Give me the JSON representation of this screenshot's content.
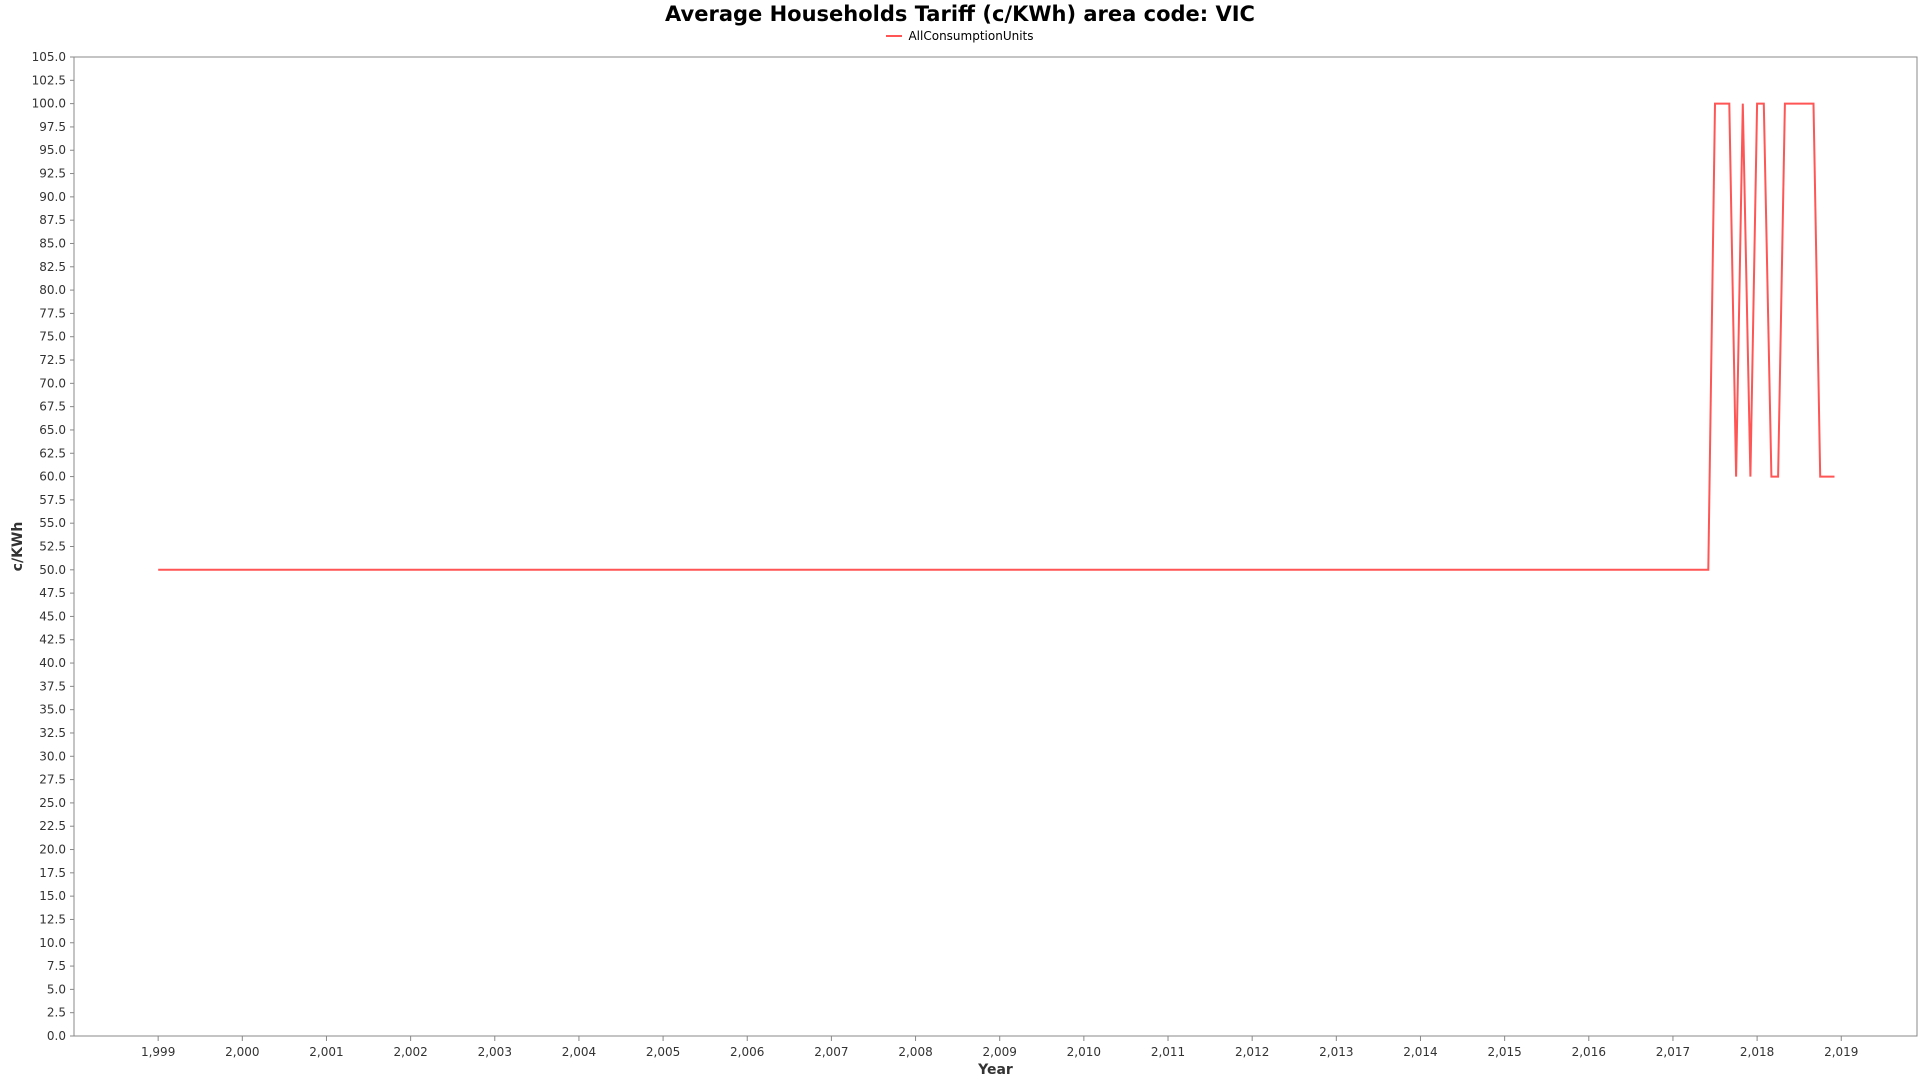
{
  "colors": {
    "series": "#ff5555",
    "axis": "#888888",
    "tick_text": "#333333",
    "background": "#ffffff"
  },
  "chart_data": {
    "type": "line",
    "title": "Average Households Tariff (c/KWh) area code: VIC",
    "xlabel": "Year",
    "ylabel": "c/KWh",
    "xlim": [
      1998.0,
      2019.9
    ],
    "ylim": [
      0,
      105
    ],
    "grid": false,
    "legend_position": "top-center",
    "x_ticks": [
      1999,
      2000,
      2001,
      2002,
      2003,
      2004,
      2005,
      2006,
      2007,
      2008,
      2009,
      2010,
      2011,
      2012,
      2013,
      2014,
      2015,
      2016,
      2017,
      2018,
      2019
    ],
    "x_tick_labels": [
      "1,999",
      "2,000",
      "2,001",
      "2,002",
      "2,003",
      "2,004",
      "2,005",
      "2,006",
      "2,007",
      "2,008",
      "2,009",
      "2,010",
      "2,011",
      "2,012",
      "2,013",
      "2,014",
      "2,015",
      "2,016",
      "2,017",
      "2,018",
      "2,019"
    ],
    "y_ticks": [
      0,
      2.5,
      5,
      7.5,
      10,
      12.5,
      15,
      17.5,
      20,
      22.5,
      25,
      27.5,
      30,
      32.5,
      35,
      37.5,
      40,
      42.5,
      45,
      47.5,
      50,
      52.5,
      55,
      57.5,
      60,
      62.5,
      65,
      67.5,
      70,
      72.5,
      75,
      77.5,
      80,
      82.5,
      85,
      87.5,
      90,
      92.5,
      95,
      97.5,
      100,
      102.5,
      105
    ],
    "y_tick_labels": [
      "0.0",
      "2.5",
      "5.0",
      "7.5",
      "10.0",
      "12.5",
      "15.0",
      "17.5",
      "20.0",
      "22.5",
      "25.0",
      "27.5",
      "30.0",
      "32.5",
      "35.0",
      "37.5",
      "40.0",
      "42.5",
      "45.0",
      "47.5",
      "50.0",
      "52.5",
      "55.0",
      "57.5",
      "60.0",
      "62.5",
      "65.0",
      "67.5",
      "70.0",
      "72.5",
      "75.0",
      "77.5",
      "80.0",
      "82.5",
      "85.0",
      "87.5",
      "90.0",
      "92.5",
      "95.0",
      "97.5",
      "100.0",
      "102.5",
      "105.0"
    ],
    "series": [
      {
        "name": "AllConsumptionUnits",
        "x": [
          1999.0,
          2017.42,
          2017.5,
          2017.67,
          2017.75,
          2017.83,
          2017.92,
          2018.0,
          2018.08,
          2018.17,
          2018.25,
          2018.33,
          2018.42,
          2018.5,
          2018.58,
          2018.67,
          2018.75,
          2018.83,
          2018.92
        ],
        "y": [
          50,
          50,
          100,
          100,
          60,
          100,
          60,
          100,
          100,
          60,
          60,
          100,
          100,
          100,
          100,
          100,
          60,
          60,
          60
        ]
      }
    ]
  }
}
